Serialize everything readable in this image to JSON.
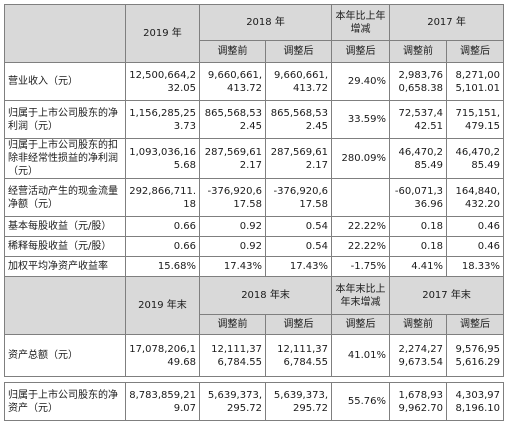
{
  "header": {
    "y2019": "2019 年",
    "y2018": "2018 年",
    "change": "本年比上年增减",
    "y2017": "2017 年",
    "before": "调整前",
    "after": "调整后",
    "after_change": "调整后"
  },
  "header2": {
    "y2019": "2019 年末",
    "y2018": "2018 年末",
    "change": "本年末比上年末增减",
    "y2017": "2017 年末",
    "before": "调整前",
    "after": "调整后",
    "after_change": "调整后"
  },
  "rows": [
    {
      "label": "营业收入（元）",
      "c2019": "12,500,664,232.05",
      "c2018b": "9,660,661,413.72",
      "c2018a": "9,660,661,413.72",
      "change": "29.40%",
      "c2017b": "2,983,760,658.38",
      "c2017a": "8,271,005,101.01"
    },
    {
      "label": "归属于上市公司股东的净利润（元）",
      "c2019": "1,156,285,253.73",
      "c2018b": "865,568,532.45",
      "c2018a": "865,568,532.45",
      "change": "33.59%",
      "c2017b": "72,537,442.51",
      "c2017a": "715,151,479.15"
    },
    {
      "label": "归属于上市公司股东的扣除非经常性损益的净利润（元）",
      "c2019": "1,093,036,165.68",
      "c2018b": "287,569,612.17",
      "c2018a": "287,569,612.17",
      "change": "280.09%",
      "c2017b": "46,470,285.49",
      "c2017a": "46,470,285.49"
    },
    {
      "label": "经营活动产生的现金流量净额（元）",
      "c2019": "292,866,711.18",
      "c2018b": "-376,920,617.58",
      "c2018a": "-376,920,617.58",
      "change": "",
      "c2017b": "-60,071,336.96",
      "c2017a": "164,840,432.20"
    },
    {
      "label": "基本每股收益（元/股）",
      "c2019": "0.66",
      "c2018b": "0.92",
      "c2018a": "0.54",
      "change": "22.22%",
      "c2017b": "0.18",
      "c2017a": "0.46"
    },
    {
      "label": "稀释每股收益（元/股）",
      "c2019": "0.66",
      "c2018b": "0.92",
      "c2018a": "0.54",
      "change": "22.22%",
      "c2017b": "0.18",
      "c2017a": "0.46"
    },
    {
      "label": "加权平均净资产收益率",
      "c2019": "15.68%",
      "c2018b": "17.43%",
      "c2018a": "17.43%",
      "change": "-1.75%",
      "c2017b": "4.41%",
      "c2017a": "18.33%"
    }
  ],
  "rows2": [
    {
      "label": "资产总额（元）",
      "c2019": "17,078,206,149.68",
      "c2018b": "12,111,376,784.55",
      "c2018a": "12,111,376,784.55",
      "change": "41.01%",
      "c2017b": "2,274,279,673.54",
      "c2017a": "9,576,955,616.29"
    },
    {
      "label": "归属于上市公司股东的净资产（元）",
      "c2019": "8,783,859,219.07",
      "c2018b": "5,639,373,295.72",
      "c2018a": "5,639,373,295.72",
      "change": "55.76%",
      "c2017b": "1,678,939,962.70",
      "c2017a": "4,303,978,196.10"
    }
  ]
}
